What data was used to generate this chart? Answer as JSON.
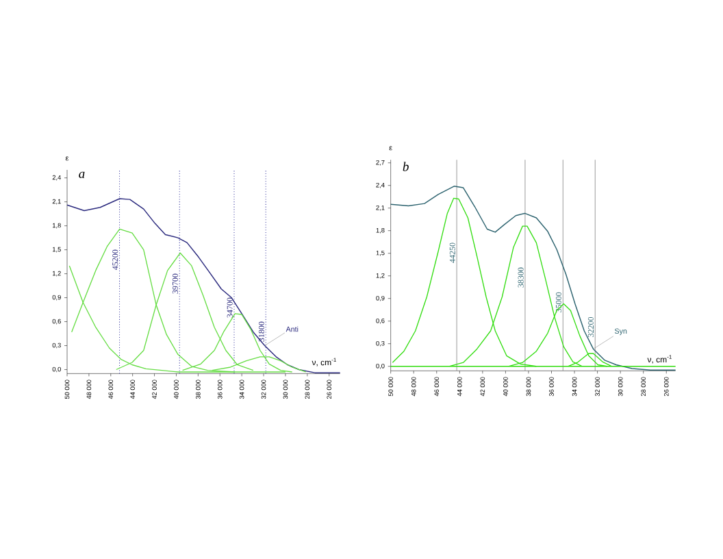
{
  "chart_data": [
    {
      "type": "line",
      "title": "a",
      "xlabel": "ν, cm$^{-1}$",
      "ylabel": "ε",
      "xlim": [
        50000,
        25000
      ],
      "ylim": [
        -0.05,
        2.5
      ],
      "xticks": [
        {
          "value": 50000,
          "label": "50 000"
        },
        {
          "value": 48000,
          "label": "48 000"
        },
        {
          "value": 46000,
          "label": "46 000"
        },
        {
          "value": 44000,
          "label": "44 000"
        },
        {
          "value": 42000,
          "label": "42 000"
        },
        {
          "value": 40000,
          "label": "40 000"
        },
        {
          "value": 38000,
          "label": "38 000"
        },
        {
          "value": 36000,
          "label": "36 000"
        },
        {
          "value": 34000,
          "label": "34 000"
        },
        {
          "value": 32000,
          "label": "32 000"
        },
        {
          "value": 30000,
          "label": "30 000"
        },
        {
          "value": 28000,
          "label": "28 000"
        },
        {
          "value": 26000,
          "label": "26 000"
        }
      ],
      "yticks": [
        {
          "value": 0,
          "label": "0,0"
        },
        {
          "value": 0.3,
          "label": "0,3"
        },
        {
          "value": 0.6,
          "label": "0,6"
        },
        {
          "value": 0.9,
          "label": "0,9"
        },
        {
          "value": 1.2,
          "label": "1,2"
        },
        {
          "value": 1.5,
          "label": "1,5"
        },
        {
          "value": 1.8,
          "label": "1,8"
        },
        {
          "value": 2.1,
          "label": "2,1"
        },
        {
          "value": 2.4,
          "label": "2,4"
        }
      ],
      "series": [
        {
          "name": "Anti",
          "color": "#2b2a7e",
          "x": [
            50000,
            48430,
            46970,
            45190,
            44250,
            42990,
            41950,
            41000,
            39850,
            39020,
            37970,
            36920,
            35880,
            34940,
            34000,
            32950,
            31900,
            30860,
            29810,
            28770,
            27300,
            25000
          ],
          "values": [
            2.06,
            1.99,
            2.03,
            2.14,
            2.13,
            2.01,
            1.83,
            1.69,
            1.65,
            1.59,
            1.41,
            1.21,
            1.01,
            0.9,
            0.7,
            0.47,
            0.3,
            0.16,
            0.06,
            0.0,
            -0.04,
            -0.04
          ]
        },
        {
          "color": "#66dd44",
          "x": [
            49790,
            48540,
            47380,
            46130,
            45080,
            44040,
            42780,
            41320,
            39850,
            30000
          ],
          "values": [
            1.3,
            0.84,
            0.53,
            0.27,
            0.13,
            0.06,
            0.01,
            -0.01,
            -0.03,
            -0.03
          ]
        },
        {
          "color": "#66dd44",
          "x": [
            49580,
            48540,
            47380,
            46340,
            45190,
            44040,
            42990,
            41840,
            40900,
            39850,
            38600,
            37130,
            34620
          ],
          "values": [
            0.47,
            0.84,
            1.24,
            1.54,
            1.76,
            1.71,
            1.5,
            0.81,
            0.44,
            0.19,
            0.04,
            -0.01,
            -0.03
          ]
        },
        {
          "color": "#66dd44",
          "x": [
            45500,
            44040,
            42990,
            41840,
            40800,
            39640,
            38600,
            37550,
            36510,
            35460,
            34410,
            32950
          ],
          "values": [
            0.0,
            0.09,
            0.24,
            0.81,
            1.24,
            1.46,
            1.3,
            0.93,
            0.53,
            0.24,
            0.06,
            -0.01
          ]
        },
        {
          "color": "#66dd44",
          "x": [
            39430,
            37760,
            36510,
            35670,
            34620,
            34000,
            33160,
            32320,
            31490,
            30440,
            29390
          ],
          "values": [
            -0.01,
            0.07,
            0.24,
            0.47,
            0.7,
            0.69,
            0.5,
            0.24,
            0.07,
            -0.01,
            -0.03
          ]
        },
        {
          "color": "#66dd44",
          "x": [
            36720,
            35040,
            33580,
            32320,
            31490,
            30440,
            29390,
            28140
          ],
          "values": [
            -0.01,
            0.03,
            0.11,
            0.16,
            0.16,
            0.11,
            0.03,
            -0.03
          ]
        }
      ],
      "ref_lines": [
        {
          "axis": "x",
          "value": 45200,
          "label": "45200",
          "color": "#3a3aa0",
          "line_style": "dotted"
        },
        {
          "axis": "x",
          "value": 39700,
          "label": "39700",
          "color": "#3a3aa0",
          "line_style": "dotted"
        },
        {
          "axis": "x",
          "value": 34700,
          "label": "34700",
          "color": "#3a3aa0",
          "line_style": "dotted"
        },
        {
          "axis": "x",
          "value": 31800,
          "label": "31800",
          "color": "#3a3aa0",
          "line_style": "dotted"
        }
      ]
    },
    {
      "type": "line",
      "title": "b",
      "xlabel": "ν, cm$^{-1}$",
      "ylabel": "ε",
      "xlim": [
        50000,
        25200
      ],
      "ylim": [
        -0.06,
        2.74
      ],
      "xticks": [
        {
          "value": 50000,
          "label": "50 000"
        },
        {
          "value": 48000,
          "label": "48 000"
        },
        {
          "value": 46000,
          "label": "46 000"
        },
        {
          "value": 44000,
          "label": "44 000"
        },
        {
          "value": 42000,
          "label": "42 000"
        },
        {
          "value": 40000,
          "label": "40 000"
        },
        {
          "value": 38000,
          "label": "38 000"
        },
        {
          "value": 36000,
          "label": "36 000"
        },
        {
          "value": 34000,
          "label": "34 000"
        },
        {
          "value": 32000,
          "label": "32 000"
        },
        {
          "value": 30000,
          "label": "30 000"
        },
        {
          "value": 28000,
          "label": "28 000"
        },
        {
          "value": 26000,
          "label": "26 000"
        }
      ],
      "yticks": [
        {
          "value": 0,
          "label": "0,0"
        },
        {
          "value": 0.3,
          "label": "0,3"
        },
        {
          "value": 0.6,
          "label": "0,6"
        },
        {
          "value": 0.9,
          "label": "0,9"
        },
        {
          "value": 1.2,
          "label": "1,2"
        },
        {
          "value": 1.5,
          "label": "1,5"
        },
        {
          "value": 1.8,
          "label": "1,8"
        },
        {
          "value": 2.1,
          "label": "2,1"
        },
        {
          "value": 2.4,
          "label": "2,4"
        },
        {
          "value": 2.7,
          "label": "2,7"
        }
      ],
      "series": [
        {
          "name": "Syn",
          "color": "#2e6470",
          "x": [
            50000,
            48450,
            47060,
            45870,
            44480,
            43680,
            42690,
            41600,
            40900,
            40110,
            39110,
            38320,
            37320,
            36330,
            35540,
            34740,
            33950,
            33150,
            32360,
            31360,
            30370,
            28980,
            27390,
            25200
          ],
          "values": [
            2.15,
            2.13,
            2.16,
            2.28,
            2.39,
            2.37,
            2.12,
            1.82,
            1.78,
            1.88,
            2.0,
            2.03,
            1.97,
            1.79,
            1.55,
            1.22,
            0.83,
            0.47,
            0.23,
            0.08,
            0.02,
            -0.03,
            -0.05,
            -0.05
          ]
        },
        {
          "color": "#33dd11",
          "x": [
            49840,
            48850,
            47850,
            46860,
            45870,
            45070,
            44520,
            44080,
            43280,
            42490,
            41690,
            40900,
            39910,
            38710,
            37320
          ],
          "values": [
            0.05,
            0.2,
            0.47,
            0.92,
            1.52,
            2.03,
            2.23,
            2.22,
            1.97,
            1.46,
            0.92,
            0.47,
            0.14,
            0.03,
            0.0
          ]
        },
        {
          "color": "#33dd11",
          "x": [
            44870,
            43680,
            42490,
            41300,
            40300,
            39310,
            38520,
            38120,
            37320,
            36530,
            35730,
            34940,
            34140,
            33350
          ],
          "values": [
            0.0,
            0.05,
            0.23,
            0.47,
            0.92,
            1.58,
            1.86,
            1.86,
            1.64,
            1.16,
            0.65,
            0.26,
            0.06,
            0.0
          ]
        },
        {
          "color": "#33dd11",
          "x": [
            39710,
            38520,
            37320,
            36330,
            35540,
            34940,
            34340,
            33550,
            32760,
            31960,
            31160
          ],
          "values": [
            0.0,
            0.05,
            0.2,
            0.44,
            0.74,
            0.83,
            0.74,
            0.41,
            0.14,
            0.02,
            0.0
          ]
        },
        {
          "color": "#33dd11",
          "x": [
            34540,
            33750,
            32760,
            32360,
            31560,
            30770
          ],
          "values": [
            0.0,
            0.05,
            0.17,
            0.17,
            0.06,
            0.0
          ]
        },
        {
          "color": "#33dd11",
          "x": [
            50000,
            25200
          ],
          "values": [
            0.0,
            0.0
          ]
        }
      ],
      "ref_lines": [
        {
          "axis": "x",
          "value": 44250,
          "label": "44250",
          "color": "#a0a0a0",
          "line_style": "solid"
        },
        {
          "axis": "x",
          "value": 38300,
          "label": "38300",
          "color": "#a0a0a0",
          "line_style": "solid"
        },
        {
          "axis": "x",
          "value": 35000,
          "label": "35000",
          "color": "#a0a0a0",
          "line_style": "solid"
        },
        {
          "axis": "x",
          "value": 32200,
          "label": "32200",
          "color": "#a0a0a0",
          "line_style": "solid"
        }
      ]
    }
  ]
}
